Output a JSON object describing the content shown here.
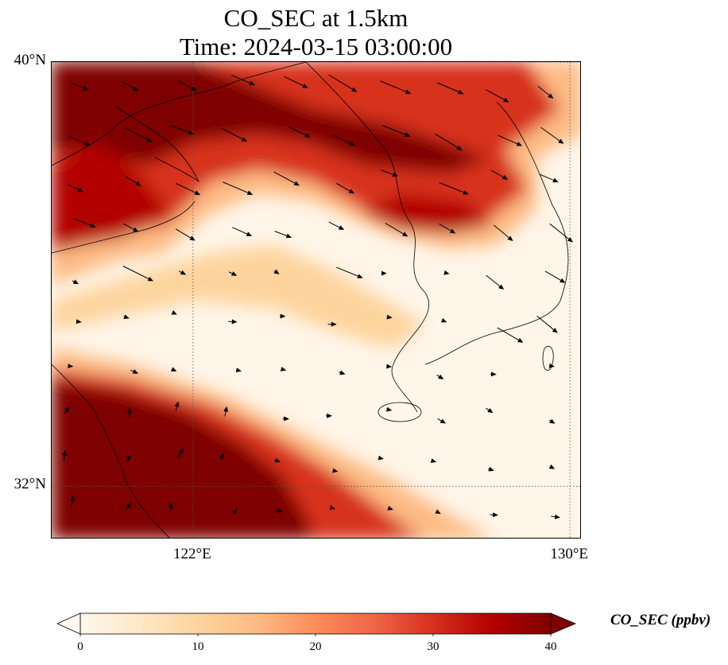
{
  "title": {
    "line1": "CO_SEC at 1.5km",
    "line2": "Time: 2024-03-15 03:00:00"
  },
  "map": {
    "lon_range": [
      119,
      130.25
    ],
    "lat_range": [
      31,
      40
    ],
    "lat_ticks": [
      {
        "value": 40,
        "label": "40°N"
      },
      {
        "value": 32,
        "label": "32°N"
      }
    ],
    "lon_ticks": [
      {
        "value": 122,
        "label": "122°E"
      },
      {
        "value": 130,
        "label": "130°E"
      }
    ],
    "gridlines": "dotted",
    "field_description": "high CO band across north-west and north (Bohai / North Korea), second band south-west (Shanghai region), low values over Korea and Yellow Sea",
    "wind_vectors": "shown"
  },
  "colorbar": {
    "label": "CO_SEC (ppbv)",
    "min": 0,
    "max": 40,
    "extend": "both",
    "colormap": "OrRd",
    "ticks": [
      {
        "value": 0,
        "label": "0"
      },
      {
        "value": 10,
        "label": "10"
      },
      {
        "value": 20,
        "label": "20"
      },
      {
        "value": 30,
        "label": "30"
      },
      {
        "value": 40,
        "label": "40"
      }
    ],
    "colors": [
      "#fff7ec",
      "#fee8c8",
      "#fdd49e",
      "#fdbb84",
      "#fc8d59",
      "#ef6548",
      "#d7301f",
      "#b30000",
      "#7f0000"
    ]
  }
}
